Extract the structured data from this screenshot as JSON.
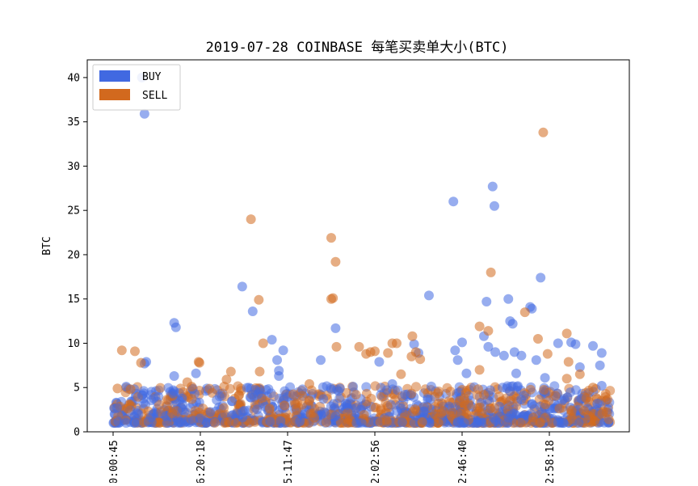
{
  "chart_data": {
    "type": "scatter",
    "title": "2019-07-28 COINBASE 每笔买卖单大小(BTC)",
    "xlabel": "",
    "ylabel": "BTC",
    "ylim": [
      0,
      42
    ],
    "yticks": [
      0,
      5,
      10,
      15,
      20,
      25,
      30,
      35,
      40
    ],
    "xtick_labels": [
      "0:00:45",
      "6:20:18",
      "5:11:47",
      "2:02:56",
      "2:46:40",
      "2:58:18"
    ],
    "xlim": [
      0,
      6
    ],
    "legend_position": "top-left",
    "grid": false,
    "colors": {
      "BUY": "#4169E1",
      "SELL": "#D2691E"
    },
    "series": [
      {
        "name": "BUY",
        "color": "#4169E1",
        "points": [
          [
            0.33,
            40.0
          ],
          [
            0.36,
            35.9
          ],
          [
            0.38,
            7.9
          ],
          [
            0.36,
            7.7
          ],
          [
            0.15,
            5.1
          ],
          [
            0.7,
            12.3
          ],
          [
            0.72,
            11.8
          ],
          [
            0.7,
            6.3
          ],
          [
            0.95,
            6.6
          ],
          [
            1.48,
            16.4
          ],
          [
            1.6,
            13.6
          ],
          [
            1.82,
            10.4
          ],
          [
            1.88,
            8.1
          ],
          [
            1.9,
            6.9
          ],
          [
            1.95,
            9.2
          ],
          [
            1.9,
            6.3
          ],
          [
            2.38,
            8.1
          ],
          [
            2.55,
            11.7
          ],
          [
            2.6,
            4.9
          ],
          [
            3.05,
            7.9
          ],
          [
            3.2,
            5.4
          ],
          [
            3.45,
            9.9
          ],
          [
            3.5,
            8.9
          ],
          [
            3.62,
            15.4
          ],
          [
            3.9,
            26.0
          ],
          [
            3.92,
            9.2
          ],
          [
            3.95,
            8.1
          ],
          [
            4.0,
            10.1
          ],
          [
            4.05,
            6.6
          ],
          [
            4.28,
            14.7
          ],
          [
            4.35,
            27.7
          ],
          [
            4.37,
            25.5
          ],
          [
            4.25,
            10.8
          ],
          [
            4.3,
            9.6
          ],
          [
            4.38,
            9.0
          ],
          [
            4.48,
            8.6
          ],
          [
            4.53,
            15.0
          ],
          [
            4.55,
            12.5
          ],
          [
            4.58,
            12.2
          ],
          [
            4.6,
            9.0
          ],
          [
            4.62,
            6.6
          ],
          [
            4.68,
            8.6
          ],
          [
            4.8,
            13.9
          ],
          [
            4.78,
            14.1
          ],
          [
            4.9,
            17.4
          ],
          [
            4.85,
            8.1
          ],
          [
            4.95,
            6.1
          ],
          [
            5.1,
            10.0
          ],
          [
            5.25,
            10.1
          ],
          [
            5.35,
            7.3
          ],
          [
            5.3,
            9.9
          ],
          [
            5.5,
            9.7
          ],
          [
            5.6,
            8.9
          ],
          [
            5.58,
            7.5
          ],
          [
            5.6,
            5.2
          ],
          [
            5.55,
            3.2
          ]
        ]
      },
      {
        "name": "SELL",
        "color": "#D2691E",
        "points": [
          [
            0.1,
            9.2
          ],
          [
            0.25,
            9.1
          ],
          [
            0.32,
            7.8
          ],
          [
            0.05,
            4.9
          ],
          [
            0.2,
            4.8
          ],
          [
            0.98,
            7.9
          ],
          [
            0.99,
            7.8
          ],
          [
            0.85,
            5.6
          ],
          [
            0.9,
            5.1
          ],
          [
            1.35,
            6.8
          ],
          [
            1.3,
            5.9
          ],
          [
            1.58,
            24.0
          ],
          [
            1.67,
            14.9
          ],
          [
            1.72,
            10.0
          ],
          [
            1.68,
            6.8
          ],
          [
            2.25,
            5.4
          ],
          [
            2.5,
            21.9
          ],
          [
            2.55,
            19.2
          ],
          [
            2.52,
            15.1
          ],
          [
            2.5,
            15.0
          ],
          [
            2.56,
            9.6
          ],
          [
            2.82,
            9.6
          ],
          [
            2.9,
            8.8
          ],
          [
            2.95,
            9.0
          ],
          [
            3.0,
            9.1
          ],
          [
            3.15,
            8.9
          ],
          [
            3.2,
            10.0
          ],
          [
            3.25,
            10.0
          ],
          [
            3.3,
            6.5
          ],
          [
            3.43,
            10.8
          ],
          [
            3.47,
            9.0
          ],
          [
            3.52,
            8.2
          ],
          [
            3.42,
            8.5
          ],
          [
            4.2,
            11.9
          ],
          [
            4.3,
            11.4
          ],
          [
            4.33,
            18.0
          ],
          [
            4.2,
            7.0
          ],
          [
            4.72,
            13.5
          ],
          [
            4.93,
            33.8
          ],
          [
            4.87,
            10.5
          ],
          [
            4.98,
            8.8
          ],
          [
            5.2,
            11.1
          ],
          [
            5.22,
            7.9
          ],
          [
            5.35,
            6.5
          ],
          [
            5.5,
            5.0
          ],
          [
            5.2,
            6.0
          ]
        ]
      }
    ]
  }
}
